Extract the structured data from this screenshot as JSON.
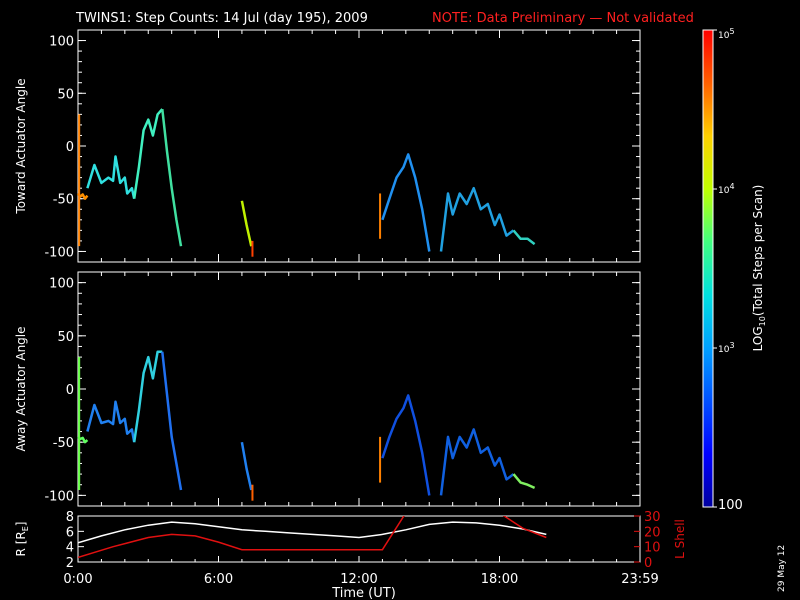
{
  "title": {
    "main": "TWINS1: Step Counts: 14 Jul (day 195), 2009",
    "note": "NOTE: Data Preliminary — Not validated"
  },
  "date_stamp": "29 May 12",
  "colors": {
    "background": "#000000",
    "axes": "#ffffff",
    "note": "#ff2020",
    "r_line": "#ffffff",
    "l_shell_line": "#e01010"
  },
  "chart_data": [
    {
      "type": "line",
      "name": "toward-panel",
      "ylabel": "Toward Actuator Angle",
      "ylim": [
        -110,
        110
      ],
      "yticks": [
        100,
        50,
        0,
        -50,
        -100
      ],
      "xlim": [
        0,
        24
      ],
      "segments": [
        {
          "x": [
            0.0,
            0.1,
            0.2,
            0.3,
            0.4
          ],
          "y": [
            -45,
            -48,
            -46,
            -50,
            -47
          ],
          "color": "#ff9000"
        },
        {
          "x": [
            0.4,
            0.7,
            1.0,
            1.3,
            1.5,
            1.6,
            1.8,
            2.0,
            2.1,
            2.3,
            2.4
          ],
          "y": [
            -40,
            -18,
            -35,
            -30,
            -33,
            -10,
            -35,
            -30,
            -45,
            -40,
            -50
          ],
          "color": "#30e0e0"
        },
        {
          "x": [
            2.4,
            2.6,
            2.8,
            3.0,
            3.2,
            3.4,
            3.6
          ],
          "y": [
            -50,
            -20,
            15,
            25,
            10,
            30,
            35
          ],
          "color": "#40f0c0"
        },
        {
          "x": [
            3.6,
            3.8,
            4.0,
            4.2,
            4.4
          ],
          "y": [
            35,
            -5,
            -40,
            -70,
            -95
          ],
          "color": "#40e0a0"
        },
        {
          "x": [
            7.0,
            7.2,
            7.4
          ],
          "y": [
            -52,
            -75,
            -95
          ],
          "color": "#c0f000"
        },
        {
          "x": [
            13.0,
            13.3,
            13.6,
            13.9,
            14.1,
            14.4,
            14.7,
            15.0
          ],
          "y": [
            -70,
            -50,
            -30,
            -20,
            -8,
            -30,
            -60,
            -100
          ],
          "color": "#2090f0"
        },
        {
          "x": [
            15.5,
            15.8,
            16.0,
            16.3,
            16.6,
            16.9,
            17.2,
            17.5,
            17.8,
            18.0,
            18.3,
            18.6
          ],
          "y": [
            -100,
            -45,
            -65,
            -45,
            -55,
            -40,
            -60,
            -55,
            -75,
            -65,
            -85,
            -80
          ],
          "color": "#20a0e0"
        },
        {
          "x": [
            18.6,
            18.9,
            19.2,
            19.5
          ],
          "y": [
            -80,
            -88,
            -88,
            -93
          ],
          "color": "#30d0c0"
        }
      ],
      "spikes": [
        {
          "x": 0.05,
          "y1": -95,
          "y2": 30,
          "color": "#ff8000"
        },
        {
          "x": 7.45,
          "y1": -90,
          "y2": -105,
          "color": "#ff4000"
        },
        {
          "x": 12.9,
          "y1": -45,
          "y2": -88,
          "color": "#ff8000"
        }
      ]
    },
    {
      "type": "line",
      "name": "away-panel",
      "ylabel": "Away Actuator Angle",
      "ylim": [
        -110,
        110
      ],
      "yticks": [
        100,
        50,
        0,
        -50,
        -100
      ],
      "xlim": [
        0,
        24
      ],
      "segments": [
        {
          "x": [
            0.0,
            0.1,
            0.2,
            0.3,
            0.4
          ],
          "y": [
            -45,
            -47,
            -46,
            -50,
            -48
          ],
          "color": "#60ff60"
        },
        {
          "x": [
            0.4,
            0.7,
            1.0,
            1.3,
            1.5,
            1.6,
            1.8,
            2.0,
            2.1,
            2.3,
            2.4
          ],
          "y": [
            -40,
            -15,
            -32,
            -30,
            -33,
            -12,
            -32,
            -28,
            -42,
            -38,
            -50
          ],
          "color": "#2080f0"
        },
        {
          "x": [
            2.4,
            2.6,
            2.8,
            3.0,
            3.2,
            3.4,
            3.6
          ],
          "y": [
            -50,
            -20,
            15,
            30,
            10,
            35,
            35
          ],
          "color": "#30d0e0"
        },
        {
          "x": [
            3.6,
            3.8,
            4.0,
            4.2,
            4.4
          ],
          "y": [
            35,
            -5,
            -45,
            -70,
            -95
          ],
          "color": "#2070f0"
        },
        {
          "x": [
            7.0,
            7.2,
            7.4
          ],
          "y": [
            -50,
            -75,
            -95
          ],
          "color": "#2080f0"
        },
        {
          "x": [
            13.0,
            13.3,
            13.6,
            13.9,
            14.1,
            14.4,
            14.7,
            15.0
          ],
          "y": [
            -65,
            -45,
            -28,
            -18,
            -6,
            -30,
            -60,
            -100
          ],
          "color": "#1050e0"
        },
        {
          "x": [
            15.5,
            15.8,
            16.0,
            16.3,
            16.6,
            16.9,
            17.2,
            17.5,
            17.8,
            18.0,
            18.3,
            18.6
          ],
          "y": [
            -100,
            -45,
            -65,
            -45,
            -55,
            -38,
            -60,
            -55,
            -72,
            -65,
            -85,
            -80
          ],
          "color": "#1060e0"
        },
        {
          "x": [
            18.6,
            18.9,
            19.2,
            19.5
          ],
          "y": [
            -80,
            -88,
            -90,
            -93
          ],
          "color": "#80f060"
        }
      ],
      "spikes": [
        {
          "x": 0.05,
          "y1": -95,
          "y2": 30,
          "color": "#60ff40"
        },
        {
          "x": 7.45,
          "y1": -90,
          "y2": -105,
          "color": "#ff6000"
        },
        {
          "x": 12.9,
          "y1": -45,
          "y2": -88,
          "color": "#ff8000"
        }
      ]
    },
    {
      "type": "line",
      "name": "ephemeris-panel",
      "ylabel_left": "R [R",
      "ylabel_left_sub": "E",
      "ylabel_left_end": "]",
      "ylabel_right": "L Shell",
      "ylim_left": [
        2,
        8
      ],
      "yticks_left": [
        8,
        6,
        4,
        2
      ],
      "ylim_right": [
        0,
        30
      ],
      "yticks_right": [
        30,
        20,
        10,
        0
      ],
      "xlim": [
        0,
        24
      ],
      "series": [
        {
          "axis": "left",
          "color": "#ffffff",
          "x": [
            0,
            1,
            2,
            3,
            4,
            5,
            6,
            7,
            8,
            9,
            10,
            11,
            12,
            13,
            14,
            15,
            16,
            17,
            18,
            19,
            20
          ],
          "y": [
            4.5,
            5.4,
            6.2,
            6.8,
            7.2,
            7.0,
            6.6,
            6.2,
            6.0,
            5.8,
            5.6,
            5.4,
            5.2,
            5.6,
            6.2,
            6.9,
            7.2,
            7.1,
            6.8,
            6.3,
            5.6
          ]
        },
        {
          "axis": "right",
          "color": "#e01010",
          "x": [
            0,
            1.5,
            3,
            4,
            5,
            6,
            7,
            8,
            10,
            12,
            13,
            13.5,
            14
          ],
          "y": [
            3,
            10,
            16,
            18,
            17,
            13,
            8,
            8,
            8,
            8,
            8,
            20,
            32
          ]
        },
        {
          "axis": "right",
          "color": "#e01010",
          "x": [
            18,
            19,
            20
          ],
          "y": [
            32,
            22,
            16
          ]
        }
      ]
    }
  ],
  "x_axis": {
    "label": "Time (UT)",
    "ticks": [
      {
        "value": 0,
        "label": "0:00"
      },
      {
        "value": 6,
        "label": "6:00"
      },
      {
        "value": 12,
        "label": "12:00"
      },
      {
        "value": 18,
        "label": "18:00"
      },
      {
        "value": 24,
        "label": "23:59"
      }
    ]
  },
  "colorbar": {
    "label": "LOG",
    "label_sub": "10",
    "label_rest": "(Total Steps per Scan)",
    "ticks": [
      {
        "value": 100,
        "label": "100"
      },
      {
        "value": 1000,
        "label": "10",
        "sup": "3"
      },
      {
        "value": 10000,
        "label": "10",
        "sup": "4"
      },
      {
        "value": 100000,
        "label": "10",
        "sup": "5"
      }
    ],
    "range": [
      100,
      100000
    ],
    "stops": [
      "#0000a0",
      "#0000ff",
      "#0050ff",
      "#00a0ff",
      "#00e0e0",
      "#40ff80",
      "#c0ff00",
      "#ffd000",
      "#ff6000",
      "#ff0000"
    ]
  }
}
